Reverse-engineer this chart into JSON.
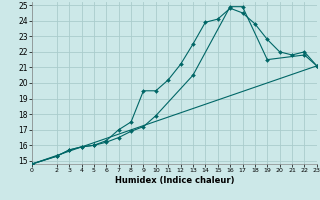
{
  "xlabel": "Humidex (Indice chaleur)",
  "bg_color": "#cce8e8",
  "grid_color": "#aacccc",
  "line_color": "#006666",
  "xlim": [
    0,
    23
  ],
  "ylim": [
    14.8,
    25.2
  ],
  "xticks": [
    0,
    2,
    3,
    4,
    5,
    6,
    7,
    8,
    9,
    10,
    11,
    12,
    13,
    14,
    15,
    16,
    17,
    18,
    19,
    20,
    21,
    22,
    23
  ],
  "yticks": [
    15,
    16,
    17,
    18,
    19,
    20,
    21,
    22,
    23,
    24,
    25
  ],
  "line1_x": [
    0,
    2,
    3,
    4,
    5,
    6,
    7,
    8,
    9,
    10,
    11,
    12,
    13,
    14,
    15,
    16,
    17,
    18,
    19,
    20,
    21,
    22,
    23
  ],
  "line1_y": [
    14.8,
    15.3,
    15.7,
    15.9,
    16.0,
    16.3,
    17.0,
    17.5,
    19.5,
    19.5,
    20.2,
    21.2,
    22.5,
    23.9,
    24.1,
    24.8,
    24.5,
    23.8,
    22.8,
    22.0,
    21.8,
    22.0,
    21.1
  ],
  "line2_x": [
    0,
    2,
    3,
    4,
    5,
    6,
    7,
    8,
    9,
    10,
    13,
    16,
    17,
    19,
    22,
    23
  ],
  "line2_y": [
    14.8,
    15.3,
    15.7,
    15.9,
    16.0,
    16.2,
    16.5,
    16.9,
    17.2,
    17.9,
    20.5,
    24.9,
    24.9,
    21.5,
    21.8,
    21.1
  ],
  "line3_x": [
    0,
    23
  ],
  "line3_y": [
    14.8,
    21.1
  ]
}
